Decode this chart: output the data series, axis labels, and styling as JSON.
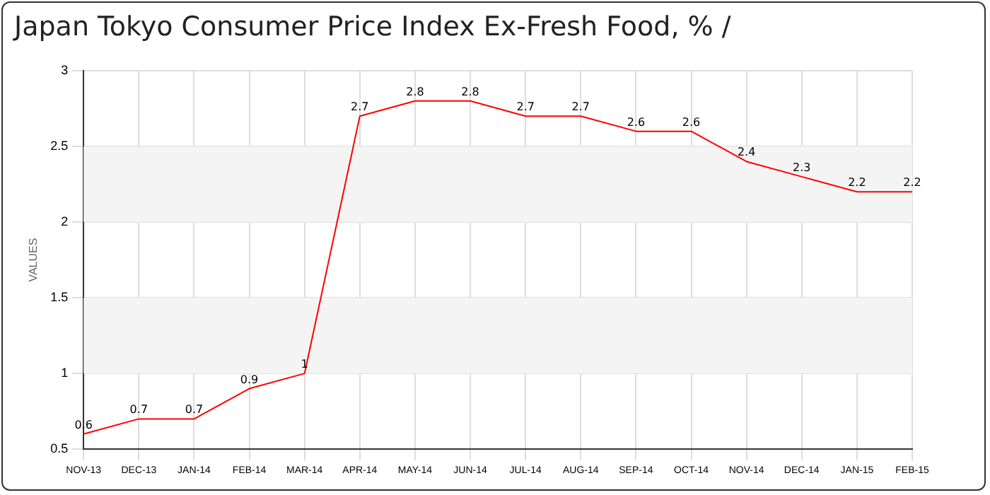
{
  "chart_data": {
    "type": "line",
    "title": "Japan Tokyo Consumer Price Index Ex-Fresh Food, % /",
    "ylabel": "VALUES",
    "categories": [
      "NOV-13",
      "DEC-13",
      "JAN-14",
      "FEB-14",
      "MAR-14",
      "APR-14",
      "MAY-14",
      "JUN-14",
      "JUL-14",
      "AUG-14",
      "SEP-14",
      "OCT-14",
      "NOV-14",
      "DEC-14",
      "JAN-15",
      "FEB-15"
    ],
    "series": [
      {
        "color": "#ff0000",
        "values": [
          0.6,
          0.7,
          0.7,
          0.9,
          1,
          2.7,
          2.8,
          2.8,
          2.7,
          2.7,
          2.6,
          2.6,
          2.4,
          2.3,
          2.2,
          2.2
        ]
      }
    ],
    "ylim": [
      0.5,
      3
    ],
    "yticks": [
      0.5,
      1,
      1.5,
      2,
      2.5,
      3
    ],
    "bands": [
      {
        "axis": "y",
        "from": 1,
        "to": 1.5,
        "color": "#f4f4f4"
      },
      {
        "axis": "y",
        "from": 2,
        "to": 2.5,
        "color": "#f4f4f4"
      }
    ],
    "grid": true,
    "line_style": "solid",
    "marker": "none",
    "data_labels": true,
    "legend": false
  }
}
